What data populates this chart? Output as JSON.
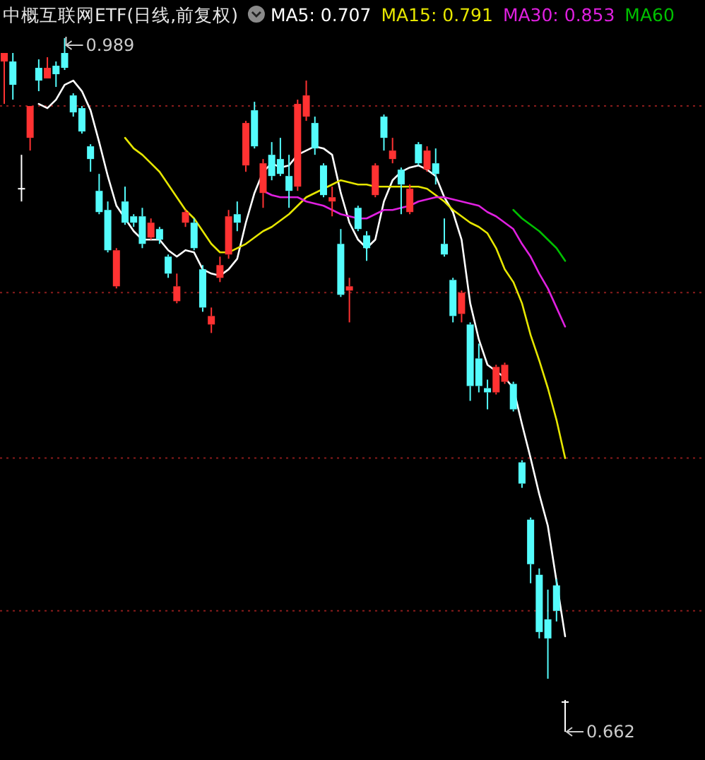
{
  "chart_data": {
    "type": "candlestick",
    "title": "中概互联网ETF(日线,前复权)",
    "legend": "top",
    "grid": "y",
    "categories": [
      null,
      null,
      null,
      null,
      null,
      null,
      null,
      null,
      null,
      null,
      null,
      null,
      null,
      null,
      null,
      null,
      null,
      null,
      null,
      null,
      null,
      null,
      null,
      null,
      null,
      null,
      null,
      null,
      null,
      null,
      null,
      null,
      null,
      null,
      null,
      null,
      null,
      null,
      null,
      null,
      null,
      null,
      null,
      null,
      null,
      null,
      null,
      null,
      null,
      null,
      null,
      null,
      null,
      null,
      null,
      null,
      null,
      null,
      null,
      null,
      null,
      null,
      null,
      null,
      null,
      null
    ],
    "yticks": [
      {
        "value": 0.957,
        "label": null
      },
      {
        "value": 0.869,
        "label": null
      },
      {
        "value": 0.791,
        "label": null
      },
      {
        "value": 0.719,
        "label": null
      }
    ],
    "ohlc": [
      [
        0.978,
        0.982,
        0.958,
        0.982
      ],
      [
        0.978,
        0.982,
        0.96,
        0.967
      ],
      [
        0.918,
        0.934,
        0.912,
        0.918
      ],
      [
        0.942,
        0.957,
        0.936,
        0.957
      ],
      [
        0.975,
        0.979,
        0.964,
        0.969
      ],
      [
        0.97,
        0.98,
        0.97,
        0.975
      ],
      [
        0.976,
        0.978,
        0.966,
        0.972
      ],
      [
        0.982,
        0.989,
        0.974,
        0.975
      ],
      [
        0.962,
        0.963,
        0.952,
        0.954
      ],
      [
        0.956,
        0.957,
        0.944,
        0.945
      ],
      [
        0.938,
        0.939,
        0.926,
        0.932
      ],
      [
        0.917,
        0.925,
        0.906,
        0.907
      ],
      [
        0.908,
        0.912,
        0.888,
        0.889
      ],
      [
        0.872,
        0.89,
        0.871,
        0.889
      ],
      [
        0.912,
        0.919,
        0.901,
        0.902
      ],
      [
        0.905,
        0.906,
        0.9,
        0.902
      ],
      [
        0.905,
        0.909,
        0.89,
        0.892
      ],
      [
        0.895,
        0.904,
        0.894,
        0.902
      ],
      [
        0.899,
        0.9,
        0.892,
        0.894
      ],
      [
        0.886,
        0.887,
        0.876,
        0.878
      ],
      [
        0.865,
        0.878,
        0.864,
        0.872
      ],
      [
        0.902,
        0.908,
        0.9,
        0.907
      ],
      [
        0.902,
        0.904,
        0.889,
        0.89
      ],
      [
        0.88,
        0.882,
        0.86,
        0.862
      ],
      [
        0.854,
        0.862,
        0.85,
        0.858
      ],
      [
        0.876,
        0.886,
        0.874,
        0.882
      ],
      [
        0.887,
        0.908,
        0.885,
        0.905
      ],
      [
        0.906,
        0.912,
        0.898,
        0.902
      ],
      [
        0.929,
        0.95,
        0.926,
        0.949
      ],
      [
        0.955,
        0.959,
        0.937,
        0.938
      ],
      [
        0.916,
        0.932,
        0.909,
        0.93
      ],
      [
        0.934,
        0.94,
        0.922,
        0.924
      ],
      [
        0.932,
        0.942,
        0.924,
        0.925
      ],
      [
        0.924,
        0.934,
        0.909,
        0.917
      ],
      [
        0.919,
        0.96,
        0.917,
        0.958
      ],
      [
        0.952,
        0.969,
        0.95,
        0.962
      ],
      [
        0.949,
        0.952,
        0.934,
        0.937
      ],
      [
        0.929,
        0.93,
        0.914,
        0.915
      ],
      [
        0.912,
        0.919,
        0.905,
        0.914
      ],
      [
        0.892,
        0.899,
        0.867,
        0.868
      ],
      [
        0.87,
        0.876,
        0.855,
        0.872
      ],
      [
        0.909,
        0.91,
        0.898,
        0.899
      ],
      [
        0.896,
        0.898,
        0.884,
        0.89
      ],
      [
        0.915,
        0.93,
        0.914,
        0.929
      ],
      [
        0.952,
        0.953,
        0.936,
        0.942
      ],
      [
        0.932,
        0.942,
        0.93,
        0.936
      ],
      [
        0.927,
        0.928,
        0.906,
        0.92
      ],
      [
        0.907,
        0.92,
        0.906,
        0.918
      ],
      [
        0.939,
        0.94,
        0.929,
        0.93
      ],
      [
        0.927,
        0.938,
        0.926,
        0.936
      ],
      [
        0.93,
        0.937,
        0.92,
        0.925
      ],
      [
        0.892,
        0.904,
        0.886,
        0.887
      ],
      [
        0.875,
        0.876,
        0.855,
        0.858
      ],
      [
        0.859,
        0.87,
        0.855,
        0.869
      ],
      [
        0.854,
        0.855,
        0.818,
        0.825
      ],
      [
        0.838,
        0.845,
        0.822,
        0.825
      ],
      [
        0.824,
        0.828,
        0.814,
        0.822
      ],
      [
        0.822,
        0.835,
        0.821,
        0.834
      ],
      [
        0.827,
        0.836,
        0.826,
        0.835
      ],
      [
        0.826,
        0.827,
        0.813,
        0.814
      ],
      [
        0.789,
        0.79,
        0.777,
        0.779
      ],
      [
        0.762,
        0.763,
        0.732,
        0.741
      ],
      [
        0.736,
        0.739,
        0.706,
        0.709
      ],
      [
        0.715,
        0.729,
        0.687,
        0.706
      ],
      [
        0.731,
        0.734,
        0.714,
        0.719
      ],
      [
        0.676,
        0.677,
        0.662,
        0.676
      ]
    ],
    "colors": [
      "#ff3232",
      "#54fcfc",
      "#ffffff",
      "#ff3232",
      "#54fcfc",
      "#ff3232",
      "#54fcfc",
      "#54fcfc",
      "#54fcfc",
      "#54fcfc",
      "#54fcfc",
      "#54fcfc",
      "#54fcfc",
      "#ff3232",
      "#54fcfc",
      "#54fcfc",
      "#54fcfc",
      "#ff3232",
      "#54fcfc",
      "#54fcfc",
      "#ff3232",
      "#ff3232",
      "#54fcfc",
      "#54fcfc",
      "#ff3232",
      "#ff3232",
      "#ff3232",
      "#54fcfc",
      "#ff3232",
      "#54fcfc",
      "#ff3232",
      "#54fcfc",
      "#54fcfc",
      "#54fcfc",
      "#ff3232",
      "#ff3232",
      "#54fcfc",
      "#54fcfc",
      "#ff3232",
      "#54fcfc",
      "#ff3232",
      "#54fcfc",
      "#54fcfc",
      "#ff3232",
      "#54fcfc",
      "#ff3232",
      "#54fcfc",
      "#ff3232",
      "#54fcfc",
      "#ff3232",
      "#54fcfc",
      "#54fcfc",
      "#54fcfc",
      "#ff3232",
      "#54fcfc",
      "#54fcfc",
      "#54fcfc",
      "#ff3232",
      "#ff3232",
      "#54fcfc",
      "#54fcfc",
      "#54fcfc",
      "#54fcfc",
      "#54fcfc",
      "#54fcfc",
      "#ffffff"
    ],
    "series": [
      {
        "type": "line",
        "name": "MA5: 0.707",
        "color": "#ffffff",
        "values": [
          null,
          null,
          null,
          null,
          0.958,
          0.956,
          0.96,
          0.967,
          0.969,
          0.964,
          0.955,
          0.94,
          0.924,
          0.91,
          0.904,
          0.898,
          0.894,
          0.894,
          0.894,
          0.889,
          0.886,
          0.889,
          0.888,
          0.88,
          0.878,
          0.877,
          0.88,
          0.885,
          0.902,
          0.916,
          0.926,
          0.93,
          0.928,
          0.929,
          0.934,
          0.936,
          0.938,
          0.937,
          0.934,
          0.916,
          0.902,
          0.894,
          0.89,
          0.894,
          0.912,
          0.922,
          0.926,
          0.928,
          0.929,
          0.927,
          0.924,
          0.914,
          0.907,
          0.894,
          0.864,
          0.847,
          0.835,
          0.832,
          0.829,
          0.824,
          0.807,
          0.791,
          0.774,
          0.759,
          0.733,
          0.707
        ]
      },
      {
        "type": "line",
        "name": "MA15: 0.791",
        "color": "#e6e600",
        "values": [
          null,
          null,
          null,
          null,
          null,
          null,
          null,
          null,
          null,
          null,
          null,
          null,
          null,
          null,
          0.942,
          0.937,
          0.934,
          0.93,
          0.926,
          0.92,
          0.914,
          0.908,
          0.904,
          0.898,
          0.892,
          0.888,
          0.888,
          0.89,
          0.892,
          0.895,
          0.898,
          0.9,
          0.903,
          0.906,
          0.91,
          0.914,
          0.916,
          0.918,
          0.92,
          0.922,
          0.921,
          0.92,
          0.92,
          0.919,
          0.919,
          0.919,
          0.919,
          0.919,
          0.919,
          0.918,
          0.915,
          0.912,
          0.908,
          0.905,
          0.902,
          0.9,
          0.897,
          0.89,
          0.88,
          0.874,
          0.864,
          0.849,
          0.837,
          0.824,
          0.809,
          0.791
        ]
      },
      {
        "type": "line",
        "name": "MA30: 0.853",
        "color": "#e020e0",
        "values": [
          null,
          null,
          null,
          null,
          null,
          null,
          null,
          null,
          null,
          null,
          null,
          null,
          null,
          null,
          null,
          null,
          null,
          null,
          null,
          null,
          null,
          null,
          null,
          null,
          null,
          null,
          null,
          null,
          null,
          null,
          0.917,
          0.915,
          0.914,
          0.914,
          0.914,
          0.912,
          0.911,
          0.91,
          0.908,
          0.906,
          0.905,
          0.904,
          0.904,
          0.906,
          0.908,
          0.908,
          0.909,
          0.91,
          0.912,
          0.913,
          0.914,
          0.914,
          0.913,
          0.912,
          0.911,
          0.91,
          0.907,
          0.905,
          0.902,
          0.899,
          0.892,
          0.886,
          0.878,
          0.871,
          0.862,
          0.853
        ]
      },
      {
        "type": "line",
        "name": "MA60",
        "color": "#00c000",
        "values": [
          null,
          null,
          null,
          null,
          null,
          null,
          null,
          null,
          null,
          null,
          null,
          null,
          null,
          null,
          null,
          null,
          null,
          null,
          null,
          null,
          null,
          null,
          null,
          null,
          null,
          null,
          null,
          null,
          null,
          null,
          null,
          null,
          null,
          null,
          null,
          null,
          null,
          null,
          null,
          null,
          null,
          null,
          null,
          null,
          null,
          null,
          null,
          null,
          null,
          null,
          null,
          null,
          null,
          null,
          null,
          null,
          null,
          null,
          null,
          0.908,
          0.904,
          0.901,
          0.898,
          0.894,
          0.89,
          0.884
        ]
      }
    ],
    "annotations": [
      "0.989",
      "0.662"
    ]
  }
}
